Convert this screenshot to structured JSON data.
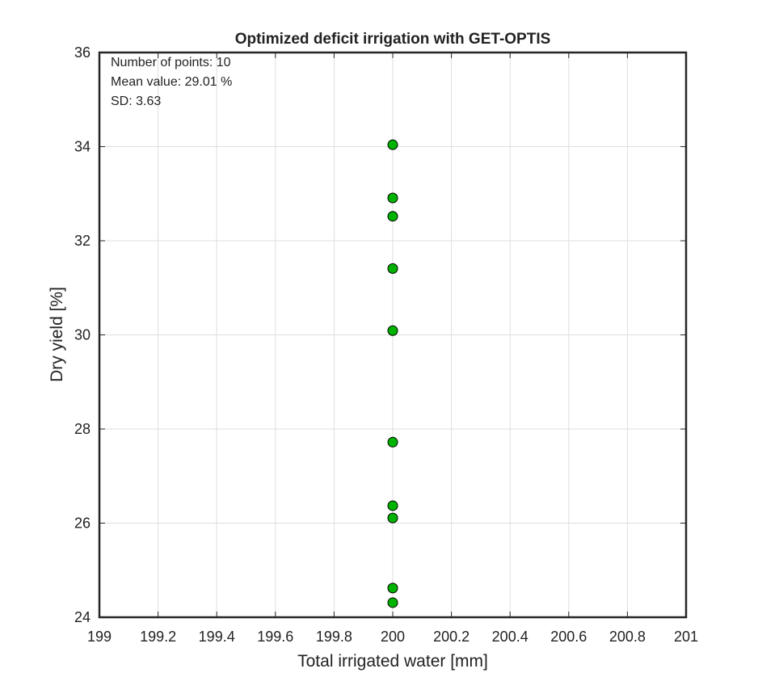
{
  "chart_data": {
    "type": "scatter",
    "title": "Optimized deficit irrigation with GET-OPTIS",
    "xlabel": "Total irrigated water [mm]",
    "ylabel": "Dry yield [%]",
    "xlim": [
      199,
      201
    ],
    "ylim": [
      24,
      36
    ],
    "xticks": [
      199,
      199.2,
      199.4,
      199.6,
      199.8,
      200,
      200.2,
      200.4,
      200.6,
      200.8,
      201
    ],
    "xtick_labels": [
      "199",
      "199.2",
      "199.4",
      "199.6",
      "199.8",
      "200",
      "200.2",
      "200.4",
      "200.6",
      "200.8",
      "201"
    ],
    "yticks": [
      24,
      26,
      28,
      30,
      32,
      34,
      36
    ],
    "ytick_labels": [
      "24",
      "26",
      "28",
      "30",
      "32",
      "34",
      "36"
    ],
    "grid": true,
    "marker_color": "#00b300",
    "marker_edge_color": "#000000",
    "series": [
      {
        "x": [
          200,
          200,
          200,
          200,
          200,
          200,
          200,
          200,
          200,
          200
        ],
        "y": [
          34.04,
          32.91,
          32.52,
          31.41,
          30.09,
          27.72,
          26.37,
          26.11,
          24.62,
          24.31
        ]
      }
    ],
    "annotations": [
      "Number of points: 10",
      "Mean value: 29.01 %",
      "SD: 3.63"
    ]
  }
}
